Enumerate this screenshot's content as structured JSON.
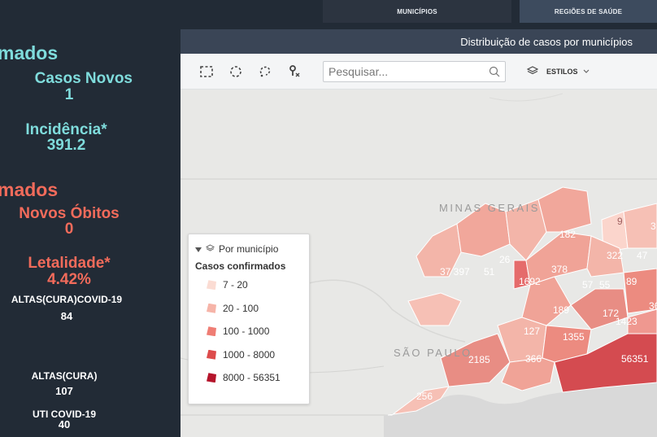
{
  "tabs": {
    "municipios": "MUNICÍPIOS",
    "regioes": "REGIÕES DE SAÚDE"
  },
  "stats": {
    "confirmados_partial": "mados",
    "casos_novos_label": "Casos Novos",
    "casos_novos_value": "1",
    "incidencia_label": "Incidência*",
    "incidencia_value": "391.2",
    "obitos_partial": "mados",
    "novos_obitos_label": "Novos Óbitos",
    "novos_obitos_value": "0",
    "letalidade_label": "Letalidade*",
    "letalidade_value": "4.42%",
    "altas_covid_label": "ALTAS(CURA)COVID-19",
    "altas_covid_value": "84",
    "altas_label": "ALTAS(CURA)",
    "altas_value": "107",
    "uti_label": "UTI COVID-19",
    "uti_value": "40"
  },
  "map": {
    "title": "Distribuição de casos por municípios",
    "search_placeholder": "Pesquisar...",
    "styles_label": "ESTILOS",
    "region_labels": [
      "MINAS GERAIS",
      "SÃO PAULO"
    ],
    "municipality_values": [
      "9",
      "3",
      "182",
      "322",
      "47",
      "26",
      "378",
      "37 397",
      "51",
      "1692",
      "57",
      "55",
      "89",
      "36",
      "189",
      "172",
      "1423",
      "127",
      "1355",
      "2185",
      "366",
      "56351",
      "256"
    ]
  },
  "legend": {
    "group_label": "Por município",
    "title": "Casos confirmados",
    "items": [
      {
        "range": "7 - 20",
        "color": "#fbdcd3"
      },
      {
        "range": "20 - 100",
        "color": "#f6b4a8"
      },
      {
        "range": "100 - 1000",
        "color": "#ef7d74"
      },
      {
        "range": "1000 - 8000",
        "color": "#dd4b4b"
      },
      {
        "range": "8000 - 56351",
        "color": "#b5142b"
      }
    ]
  },
  "colors": {
    "background": "#222b36",
    "cyan": "#7fdcdc",
    "red": "#f26b5b",
    "header_bar": "#3a4556"
  }
}
